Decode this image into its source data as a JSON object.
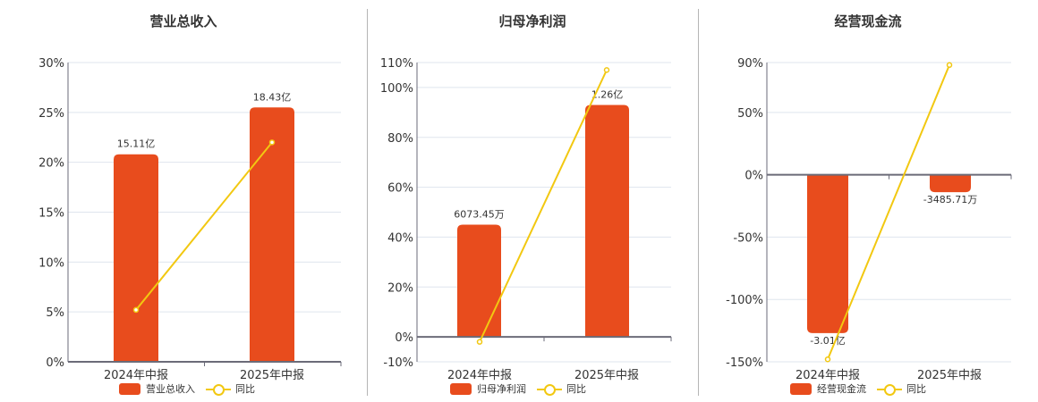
{
  "colors": {
    "bar": "#e84c1d",
    "line": "#f2c811",
    "grid": "#dfe5ee",
    "axis": "#6b6b78"
  },
  "legend_yoy": "同比",
  "chart_data": [
    {
      "type": "bar+line",
      "title": "营业总收入",
      "categories": [
        "2024年中报",
        "2025年中报"
      ],
      "series": [
        {
          "name": "营业总收入",
          "type": "bar",
          "values": [
            20.8,
            25.5
          ],
          "labels": [
            "15.11亿",
            "18.43亿"
          ]
        },
        {
          "name": "同比",
          "type": "line",
          "values": [
            5.2,
            22.0
          ]
        }
      ],
      "yticks": [
        "30%",
        "25%",
        "20%",
        "15%",
        "10%",
        "5%",
        "0%"
      ],
      "ylim": [
        0,
        30
      ],
      "ytick_values": [
        30,
        25,
        20,
        15,
        10,
        5,
        0
      ],
      "grid": true,
      "legend_position": "bottom"
    },
    {
      "type": "bar+line",
      "title": "归母净利润",
      "categories": [
        "2024年中报",
        "2025年中报"
      ],
      "series": [
        {
          "name": "归母净利润",
          "type": "bar",
          "values": [
            45,
            93
          ],
          "labels": [
            "6073.45万",
            "1.26亿"
          ]
        },
        {
          "name": "同比",
          "type": "line",
          "values": [
            -2,
            107
          ]
        }
      ],
      "yticks": [
        "110%",
        "100%",
        "80%",
        "60%",
        "40%",
        "20%",
        "0%",
        "-10%"
      ],
      "ylim": [
        -10,
        110
      ],
      "ytick_values": [
        110,
        100,
        80,
        60,
        40,
        20,
        0,
        -10
      ],
      "grid": true,
      "legend_position": "bottom"
    },
    {
      "type": "bar+line",
      "title": "经营现金流",
      "categories": [
        "2024年中报",
        "2025年中报"
      ],
      "series": [
        {
          "name": "经营现金流",
          "type": "bar",
          "values": [
            -127,
            -14
          ],
          "labels": [
            "-3.01亿",
            "-3485.71万"
          ]
        },
        {
          "name": "同比",
          "type": "line",
          "values": [
            -148,
            88
          ]
        }
      ],
      "yticks": [
        "90%",
        "50%",
        "0%",
        "-50%",
        "-100%",
        "-150%"
      ],
      "ylim": [
        -150,
        90
      ],
      "ytick_values": [
        90,
        50,
        0,
        -50,
        -100,
        -150
      ],
      "grid": true,
      "legend_position": "bottom"
    }
  ]
}
